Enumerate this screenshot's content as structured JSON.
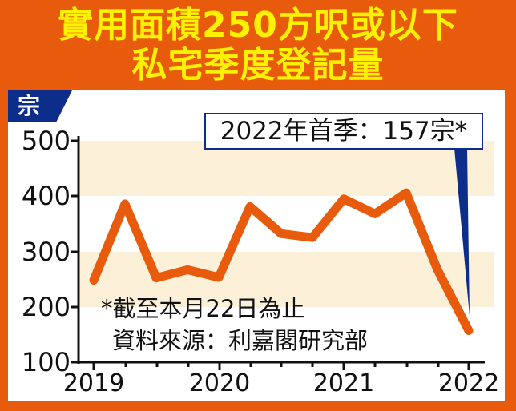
{
  "header": {
    "title_line1": "實用面積250方呎或以下",
    "title_line2": "私宅季度登記量"
  },
  "chart_data": {
    "type": "line",
    "title": "實用面積250方呎或以下私宅季度登記量",
    "ylabel": "宗",
    "xlabel": "",
    "ylim": [
      100,
      500
    ],
    "yticks": [
      100,
      200,
      300,
      400,
      500
    ],
    "xtick_labels": [
      "2019",
      "2020",
      "2021",
      "2022"
    ],
    "x": [
      "2019Q1",
      "2019Q2",
      "2019Q3",
      "2019Q4",
      "2020Q1",
      "2020Q2",
      "2020Q3",
      "2020Q4",
      "2021Q1",
      "2021Q2",
      "2021Q3",
      "2021Q4",
      "2022Q1"
    ],
    "series": [
      {
        "name": "季度登記量",
        "values": [
          248,
          386,
          252,
          267,
          253,
          381,
          332,
          325,
          395,
          368,
          406,
          267,
          157
        ],
        "color": "#e85a0c"
      }
    ],
    "shaded_bands": [
      [
        200,
        300
      ],
      [
        400,
        500
      ]
    ],
    "annotation": "2022年首季：157宗*",
    "grid": false
  },
  "unit_label": "宗",
  "y_axis": {
    "labels": [
      "500",
      "400",
      "300",
      "200",
      "100"
    ]
  },
  "x_axis": {
    "labels": [
      "2019",
      "2020",
      "2021",
      "2022"
    ]
  },
  "callout": {
    "text": "2022年首季：157宗*"
  },
  "notes": {
    "footnote": "*截至本月22日為止",
    "source": "資料來源：利嘉閣研究部"
  },
  "colors": {
    "background": "#e85a0c",
    "title": "#fff200",
    "line": "#e85a0c",
    "band": "#fdf0d8",
    "accent": "#0d2d8a"
  }
}
